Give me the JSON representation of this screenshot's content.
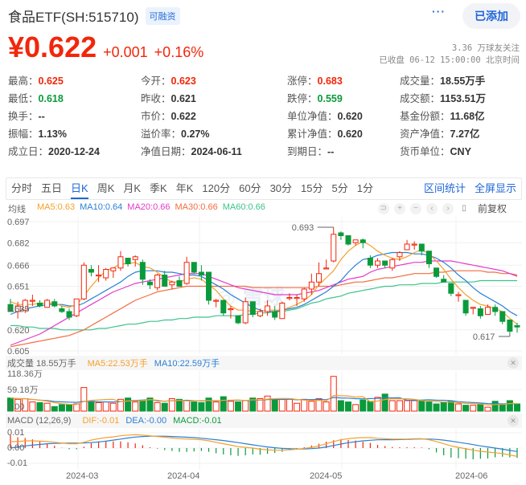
{
  "header": {
    "title": "食品ETF(SH:515710)",
    "badge": "可融资",
    "more_label": "···",
    "add_button": "已添加",
    "price": "¥0.622",
    "change_abs": "+0.001",
    "change_pct": "+0.16%",
    "followers": "3.36 万球友关注",
    "status": "已收盘 06-12 15:00:00 北京时间"
  },
  "colors": {
    "up": "#f2260b",
    "down": "#0a9a3c",
    "accent": "#1f66d8",
    "ma5": "#f5a02b",
    "ma10": "#2a7fd6",
    "ma20": "#e23ac8",
    "ma30": "#f26d40",
    "ma60": "#3cc38a"
  },
  "stats": [
    {
      "label": "最高：",
      "value": "0.625",
      "tone": "red",
      "col": 0,
      "row": 0
    },
    {
      "label": "今开：",
      "value": "0.623",
      "tone": "red",
      "col": 1,
      "row": 0
    },
    {
      "label": "涨停：",
      "value": "0.683",
      "tone": "red",
      "col": 2,
      "row": 0
    },
    {
      "label": "成交量：",
      "value": "18.55万手",
      "tone": "",
      "col": 3,
      "row": 0
    },
    {
      "label": "最低：",
      "value": "0.618",
      "tone": "green",
      "col": 0,
      "row": 1
    },
    {
      "label": "昨收：",
      "value": "0.621",
      "tone": "",
      "col": 1,
      "row": 1
    },
    {
      "label": "跌停：",
      "value": "0.559",
      "tone": "green",
      "col": 2,
      "row": 1
    },
    {
      "label": "成交额：",
      "value": "1153.51万",
      "tone": "",
      "col": 3,
      "row": 1
    },
    {
      "label": "换手：",
      "value": "--",
      "tone": "",
      "col": 0,
      "row": 2
    },
    {
      "label": "市价：",
      "value": "0.622",
      "tone": "",
      "col": 1,
      "row": 2
    },
    {
      "label": "单位净值：",
      "value": "0.620",
      "tone": "",
      "col": 2,
      "row": 2
    },
    {
      "label": "基金份额：",
      "value": "11.68亿",
      "tone": "",
      "col": 3,
      "row": 2
    },
    {
      "label": "振幅：",
      "value": "1.13%",
      "tone": "",
      "col": 0,
      "row": 3
    },
    {
      "label": "溢价率：",
      "value": "0.27%",
      "tone": "",
      "col": 1,
      "row": 3
    },
    {
      "label": "累计净值：",
      "value": "0.620",
      "tone": "",
      "col": 2,
      "row": 3
    },
    {
      "label": "资产净值：",
      "value": "7.27亿",
      "tone": "",
      "col": 3,
      "row": 3
    },
    {
      "label": "成立日：",
      "value": "2020-12-24",
      "tone": "",
      "col": 0,
      "row": 4
    },
    {
      "label": "净值日期：",
      "value": "2024-06-11",
      "tone": "",
      "col": 1,
      "row": 4
    },
    {
      "label": "到期日：",
      "value": "--",
      "tone": "",
      "col": 2,
      "row": 4
    },
    {
      "label": "货币单位：",
      "value": "CNY",
      "tone": "",
      "col": 3,
      "row": 4
    }
  ],
  "tabs": {
    "items": [
      "分时",
      "五日",
      "日K",
      "周K",
      "月K",
      "季K",
      "年K",
      "120分",
      "60分",
      "30分",
      "15分",
      "5分",
      "1分"
    ],
    "active": "日K",
    "range_stats": "区间统计",
    "fullscreen": "全屏显示"
  },
  "ma_legend": {
    "label": "均线",
    "ma5": "MA5:0.63",
    "ma10": "MA10:0.64",
    "ma20": "MA20:0.66",
    "ma30": "MA30:0.66",
    "ma60": "MA60:0.66"
  },
  "controls": {
    "icons": [
      "reset-icon",
      "zoom-in-icon",
      "zoom-out-icon",
      "scroll-left-icon",
      "scroll-right-icon",
      "candle-style-icon"
    ],
    "glyphs": [
      "⊃",
      "+",
      "−",
      "‹",
      "›",
      "▯"
    ],
    "adjust": "前复权"
  },
  "volume": {
    "label": "成交量 18.55万手",
    "ma5": "MA5:22.53万手",
    "ma10": "MA10:22.59万手",
    "y_ticks": [
      "118.36万",
      "59.18万",
      "0.00"
    ]
  },
  "macd": {
    "label": "MACD (12,26,9)",
    "dif": "DIF:-0.01",
    "dea": "DEA:-0.00",
    "macd": "MACD:-0.01",
    "y_ticks": [
      "0.01",
      "0.00",
      "-0.01"
    ]
  },
  "x_axis": [
    "2024-03",
    "2024-04",
    "2024-05",
    "2024-06"
  ],
  "chart_data": {
    "type": "candlestick",
    "title": "食品ETF(SH:515710) 日K",
    "y_ticks": [
      "0.697",
      "0.682",
      "0.666",
      "0.651",
      "0.635",
      "0.620",
      "0.605"
    ],
    "ylim": [
      0.605,
      0.697
    ],
    "annotations": [
      {
        "label": "0.693",
        "type": "max"
      },
      {
        "label": "0.617",
        "type": "min"
      }
    ],
    "x_ticks": [
      "2024-03",
      "2024-04",
      "2024-05",
      "2024-06"
    ],
    "ohlc": [
      [
        0.638,
        0.642,
        0.633,
        0.633
      ],
      [
        0.633,
        0.64,
        0.628,
        0.637
      ],
      [
        0.634,
        0.642,
        0.632,
        0.641
      ],
      [
        0.641,
        0.645,
        0.637,
        0.641
      ],
      [
        0.639,
        0.641,
        0.636,
        0.637
      ],
      [
        0.636,
        0.642,
        0.636,
        0.641
      ],
      [
        0.64,
        0.642,
        0.636,
        0.637
      ],
      [
        0.635,
        0.637,
        0.632,
        0.633
      ],
      [
        0.633,
        0.635,
        0.627,
        0.629
      ],
      [
        0.63,
        0.642,
        0.629,
        0.642
      ],
      [
        0.642,
        0.668,
        0.641,
        0.666
      ],
      [
        0.663,
        0.666,
        0.658,
        0.661
      ],
      [
        0.659,
        0.666,
        0.654,
        0.659
      ],
      [
        0.657,
        0.664,
        0.655,
        0.663
      ],
      [
        0.662,
        0.664,
        0.657,
        0.664
      ],
      [
        0.664,
        0.676,
        0.662,
        0.672
      ],
      [
        0.671,
        0.671,
        0.665,
        0.667
      ],
      [
        0.67,
        0.673,
        0.665,
        0.672
      ],
      [
        0.668,
        0.67,
        0.652,
        0.656
      ],
      [
        0.654,
        0.656,
        0.649,
        0.652
      ],
      [
        0.65,
        0.66,
        0.648,
        0.659
      ],
      [
        0.659,
        0.662,
        0.651,
        0.651
      ],
      [
        0.652,
        0.655,
        0.649,
        0.654
      ],
      [
        0.655,
        0.658,
        0.651,
        0.651
      ],
      [
        0.653,
        0.672,
        0.652,
        0.668
      ],
      [
        0.668,
        0.668,
        0.66,
        0.661
      ],
      [
        0.661,
        0.666,
        0.655,
        0.659
      ],
      [
        0.661,
        0.661,
        0.638,
        0.641
      ],
      [
        0.641,
        0.642,
        0.636,
        0.641
      ],
      [
        0.641,
        0.641,
        0.63,
        0.632
      ],
      [
        0.635,
        0.637,
        0.628,
        0.635
      ],
      [
        0.63,
        0.63,
        0.624,
        0.625
      ],
      [
        0.625,
        0.643,
        0.624,
        0.64
      ],
      [
        0.64,
        0.64,
        0.629,
        0.631
      ],
      [
        0.63,
        0.635,
        0.629,
        0.633
      ],
      [
        0.633,
        0.641,
        0.63,
        0.637
      ],
      [
        0.633,
        0.637,
        0.627,
        0.629
      ],
      [
        0.628,
        0.64,
        0.628,
        0.639
      ],
      [
        0.643,
        0.646,
        0.641,
        0.643
      ],
      [
        0.643,
        0.645,
        0.637,
        0.643
      ],
      [
        0.642,
        0.65,
        0.64,
        0.649
      ],
      [
        0.649,
        0.66,
        0.645,
        0.654
      ],
      [
        0.654,
        0.668,
        0.651,
        0.66
      ],
      [
        0.664,
        0.67,
        0.663,
        0.664
      ],
      [
        0.669,
        0.693,
        0.668,
        0.688
      ],
      [
        0.689,
        0.69,
        0.684,
        0.687
      ],
      [
        0.687,
        0.687,
        0.68,
        0.681
      ],
      [
        0.682,
        0.684,
        0.68,
        0.684
      ],
      [
        0.684,
        0.685,
        0.678,
        0.682
      ],
      [
        0.671,
        0.673,
        0.664,
        0.666
      ],
      [
        0.666,
        0.671,
        0.664,
        0.669
      ],
      [
        0.669,
        0.669,
        0.664,
        0.666
      ],
      [
        0.664,
        0.671,
        0.662,
        0.67
      ],
      [
        0.672,
        0.676,
        0.669,
        0.675
      ],
      [
        0.677,
        0.684,
        0.677,
        0.681
      ],
      [
        0.681,
        0.683,
        0.677,
        0.681
      ],
      [
        0.681,
        0.681,
        0.673,
        0.676
      ],
      [
        0.676,
        0.676,
        0.664,
        0.667
      ],
      [
        0.664,
        0.664,
        0.657,
        0.658
      ],
      [
        0.656,
        0.659,
        0.654,
        0.654
      ],
      [
        0.653,
        0.653,
        0.644,
        0.646
      ],
      [
        0.645,
        0.647,
        0.64,
        0.645
      ],
      [
        0.641,
        0.641,
        0.63,
        0.632
      ],
      [
        0.636,
        0.636,
        0.631,
        0.636
      ],
      [
        0.635,
        0.637,
        0.628,
        0.63
      ],
      [
        0.631,
        0.638,
        0.632,
        0.636
      ],
      [
        0.636,
        0.638,
        0.63,
        0.633
      ],
      [
        0.633,
        0.633,
        0.624,
        0.626
      ],
      [
        0.627,
        0.627,
        0.617,
        0.619
      ],
      [
        0.623,
        0.625,
        0.618,
        0.622
      ]
    ],
    "ma5": [
      0.64,
      0.638,
      0.638,
      0.638,
      0.639,
      0.639,
      0.639,
      0.637,
      0.636,
      0.638,
      0.644,
      0.651,
      0.657,
      0.662,
      0.664,
      0.667,
      0.667,
      0.668,
      0.665,
      0.664,
      0.661,
      0.657,
      0.654,
      0.654,
      0.656,
      0.657,
      0.656,
      0.652,
      0.648,
      0.642,
      0.637,
      0.634,
      0.634,
      0.633,
      0.633,
      0.634,
      0.634,
      0.634,
      0.636,
      0.638,
      0.641,
      0.645,
      0.652,
      0.657,
      0.662,
      0.67,
      0.676,
      0.68,
      0.683,
      0.68,
      0.676,
      0.673,
      0.671,
      0.67,
      0.672,
      0.675,
      0.677,
      0.674,
      0.669,
      0.663,
      0.656,
      0.65,
      0.645,
      0.641,
      0.638,
      0.637,
      0.635,
      0.633,
      0.628,
      0.624
    ],
    "ma10": [
      0.631,
      0.633,
      0.635,
      0.636,
      0.637,
      0.638,
      0.638,
      0.638,
      0.637,
      0.637,
      0.639,
      0.642,
      0.645,
      0.648,
      0.651,
      0.654,
      0.658,
      0.661,
      0.662,
      0.662,
      0.662,
      0.661,
      0.661,
      0.66,
      0.659,
      0.659,
      0.658,
      0.655,
      0.652,
      0.649,
      0.645,
      0.642,
      0.639,
      0.636,
      0.634,
      0.633,
      0.633,
      0.634,
      0.635,
      0.636,
      0.638,
      0.641,
      0.644,
      0.647,
      0.651,
      0.655,
      0.661,
      0.666,
      0.67,
      0.671,
      0.673,
      0.674,
      0.675,
      0.675,
      0.675,
      0.674,
      0.674,
      0.673,
      0.671,
      0.668,
      0.664,
      0.659,
      0.655,
      0.65,
      0.646,
      0.643,
      0.64,
      0.637,
      0.633,
      0.63
    ],
    "ma20": [
      0.609,
      0.611,
      0.613,
      0.615,
      0.617,
      0.62,
      0.623,
      0.626,
      0.629,
      0.632,
      0.635,
      0.638,
      0.641,
      0.644,
      0.647,
      0.649,
      0.651,
      0.653,
      0.654,
      0.655,
      0.656,
      0.657,
      0.658,
      0.659,
      0.66,
      0.66,
      0.66,
      0.658,
      0.656,
      0.654,
      0.652,
      0.65,
      0.649,
      0.648,
      0.647,
      0.646,
      0.645,
      0.645,
      0.645,
      0.645,
      0.646,
      0.647,
      0.648,
      0.65,
      0.652,
      0.654,
      0.656,
      0.657,
      0.658,
      0.661,
      0.663,
      0.664,
      0.665,
      0.666,
      0.667,
      0.668,
      0.668,
      0.669,
      0.669,
      0.669,
      0.669,
      0.668,
      0.667,
      0.666,
      0.665,
      0.664,
      0.663,
      0.662,
      0.66,
      0.658
    ],
    "ma30": [
      0.608,
      0.609,
      0.61,
      0.611,
      0.612,
      0.613,
      0.614,
      0.615,
      0.616,
      0.618,
      0.62,
      0.623,
      0.626,
      0.629,
      0.632,
      0.635,
      0.638,
      0.641,
      0.643,
      0.645,
      0.647,
      0.648,
      0.649,
      0.65,
      0.651,
      0.651,
      0.651,
      0.651,
      0.651,
      0.651,
      0.651,
      0.651,
      0.651,
      0.65,
      0.65,
      0.65,
      0.65,
      0.65,
      0.65,
      0.65,
      0.65,
      0.65,
      0.651,
      0.651,
      0.651,
      0.652,
      0.653,
      0.654,
      0.654,
      0.655,
      0.656,
      0.657,
      0.657,
      0.658,
      0.659,
      0.66,
      0.66,
      0.66,
      0.661,
      0.661,
      0.662,
      0.662,
      0.662,
      0.662,
      0.662,
      0.661,
      0.661,
      0.66,
      0.66,
      0.659
    ],
    "ma60": [
      0.623,
      0.623,
      0.622,
      0.622,
      0.621,
      0.621,
      0.621,
      0.62,
      0.62,
      0.62,
      0.62,
      0.62,
      0.621,
      0.621,
      0.622,
      0.623,
      0.624,
      0.624,
      0.625,
      0.626,
      0.626,
      0.627,
      0.627,
      0.628,
      0.628,
      0.629,
      0.629,
      0.629,
      0.63,
      0.63,
      0.63,
      0.63,
      0.631,
      0.631,
      0.632,
      0.632,
      0.633,
      0.633,
      0.634,
      0.635,
      0.637,
      0.639,
      0.64,
      0.642,
      0.643,
      0.644,
      0.646,
      0.647,
      0.648,
      0.649,
      0.65,
      0.651,
      0.651,
      0.652,
      0.652,
      0.652,
      0.653,
      0.653,
      0.653,
      0.654,
      0.654,
      0.654,
      0.654,
      0.654,
      0.655,
      0.655,
      0.655,
      0.655,
      0.655,
      0.655
    ],
    "volume": [
      20,
      18,
      19,
      14,
      13,
      12,
      7,
      10,
      10,
      11,
      36,
      15,
      13,
      14,
      12,
      18,
      20,
      14,
      16,
      20,
      13,
      12,
      19,
      18,
      16,
      14,
      13,
      20,
      14,
      22,
      15,
      14,
      16,
      20,
      19,
      23,
      17,
      18,
      19,
      12,
      18,
      15,
      19,
      14,
      53,
      16,
      14,
      10,
      17,
      15,
      21,
      26,
      16,
      16,
      16,
      16,
      16,
      14,
      11,
      13,
      15,
      11,
      9,
      9,
      11,
      6,
      15,
      10,
      16,
      11
    ],
    "macd_dif": [
      0.0045,
      0.0045,
      0.005,
      0.005,
      0.0048,
      0.0045,
      0.004,
      0.0035,
      0.003,
      0.003,
      0.004,
      0.0055,
      0.0065,
      0.0072,
      0.0078,
      0.0085,
      0.009,
      0.0092,
      0.009,
      0.0085,
      0.008,
      0.0075,
      0.007,
      0.0065,
      0.0062,
      0.006,
      0.0058,
      0.005,
      0.004,
      0.003,
      0.002,
      0.001,
      0.0005,
      0.0,
      -0.0008,
      -0.0012,
      -0.0015,
      -0.0015,
      -0.0012,
      -0.0008,
      -0.0003,
      0.0005,
      0.0015,
      0.003,
      0.0045,
      0.0058,
      0.0065,
      0.007,
      0.0072,
      0.0072,
      0.0068,
      0.0065,
      0.0062,
      0.0062,
      0.0063,
      0.0065,
      0.0065,
      0.0058,
      0.0045,
      0.003,
      0.0015,
      0.0005,
      -0.0005,
      -0.0015,
      -0.0022,
      -0.0028,
      -0.0032,
      -0.0038,
      -0.0048,
      -0.0058
    ],
    "macd_dea": [
      0.0,
      0.0008,
      0.0015,
      0.002,
      0.0025,
      0.003,
      0.0032,
      0.0034,
      0.0034,
      0.0034,
      0.0035,
      0.0038,
      0.0042,
      0.0048,
      0.0055,
      0.0062,
      0.007,
      0.0076,
      0.008,
      0.0082,
      0.0082,
      0.0082,
      0.008,
      0.0078,
      0.0075,
      0.0072,
      0.0068,
      0.0063,
      0.0058,
      0.0052,
      0.0045,
      0.0038,
      0.003,
      0.0022,
      0.0015,
      0.0008,
      0.0002,
      -0.0002,
      -0.0005,
      -0.0006,
      -0.0006,
      -0.0004,
      0.0,
      0.0008,
      0.0018,
      0.0028,
      0.0037,
      0.0044,
      0.005,
      0.0054,
      0.0057,
      0.0058,
      0.0058,
      0.0059,
      0.006,
      0.0062,
      0.0063,
      0.0062,
      0.006,
      0.0055,
      0.0048,
      0.004,
      0.0032,
      0.0024,
      0.0015,
      0.0008,
      0.0,
      -0.0008,
      -0.0016,
      -0.0024
    ],
    "macd_hist": [
      0.009,
      0.0075,
      0.007,
      0.006,
      0.0046,
      0.003,
      0.0016,
      0.0002,
      -0.0008,
      -0.0008,
      0.001,
      0.0034,
      0.0046,
      0.0048,
      0.0046,
      0.0046,
      0.004,
      0.0032,
      0.002,
      0.0006,
      -0.0004,
      -0.0014,
      -0.002,
      -0.0026,
      -0.0026,
      -0.0024,
      -0.002,
      -0.0026,
      -0.0036,
      -0.0044,
      -0.005,
      -0.0054,
      -0.005,
      -0.0044,
      -0.0046,
      -0.004,
      -0.0034,
      -0.0026,
      -0.0014,
      -0.0004,
      0.0006,
      0.0018,
      0.003,
      0.0044,
      0.0054,
      0.006,
      0.0056,
      0.0052,
      0.0044,
      0.0036,
      0.0022,
      0.0014,
      0.0008,
      0.0006,
      0.0006,
      0.0006,
      0.0004,
      -0.0008,
      -0.003,
      -0.005,
      -0.0066,
      -0.007,
      -0.0074,
      -0.0078,
      -0.0074,
      -0.0072,
      -0.0064,
      -0.006,
      -0.0064,
      -0.0068
    ]
  }
}
